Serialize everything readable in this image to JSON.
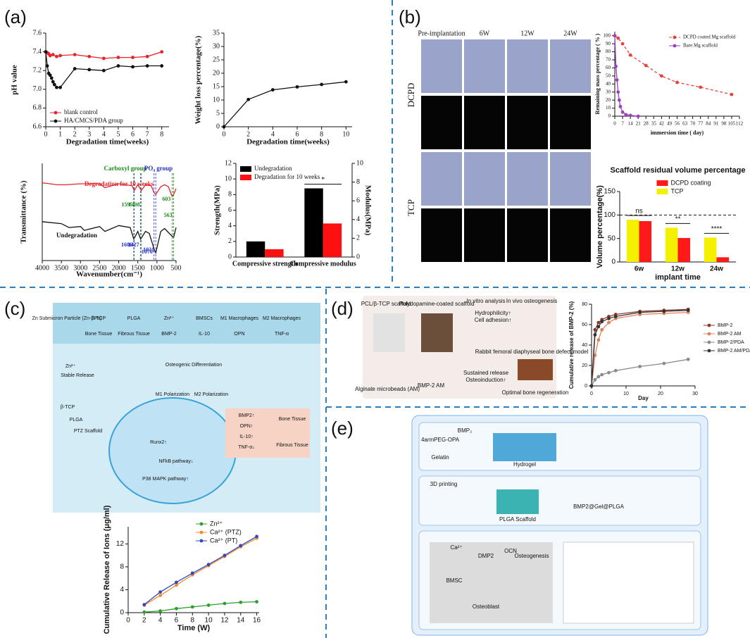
{
  "panel_labels": [
    "(a)",
    "(b)",
    "(c)",
    "(d)",
    "(e)"
  ],
  "photos": {
    "columns": [
      "Pre-implantation",
      "6W",
      "12W",
      "24W"
    ],
    "rows": [
      "DCPD",
      "TCP"
    ]
  },
  "diagrams": {
    "c": [
      "Zn Submicron Particle (Zn-SPs)",
      "β-TCP",
      "PLGA",
      "Zn²⁺",
      "BMSCs",
      "M1 Macrophages",
      "M2 Macrophages",
      "Bone Tissue",
      "Fibrous Tissue",
      "BMP-2",
      "IL-10",
      "OPN",
      "TNF-α",
      "Zn²⁺",
      "Stable Release",
      "Osteogenic Differentiation",
      "M1 Polarization",
      "M2 Polarization",
      "PTZ Scaffold",
      "PLGA",
      "β-TCP",
      "Runx2↑",
      "NFkB pathway↓",
      "P38 MAPK pathway↑",
      "BMP2↑",
      "OPN↑",
      "IL-10↑",
      "TNF-α↓",
      "Bone Tissue",
      "Fibrous Tissue"
    ],
    "d": [
      "PCL/β-TCP scaffold",
      "Polydopamine-coated scaffold",
      "In vitro analysis",
      "In vivo osteogenesis",
      "Hydrophilicity↑",
      "Cell adhesion↑",
      "Alginate microbeads (AM)",
      "BMP-2 AM",
      "Sustained release",
      "Osteoinduction↑",
      "Rabbit femoral diaphyseal bone defect model",
      "Optimal bone regeneration"
    ],
    "e": [
      "4armPEG-OPA",
      "BMP₂",
      "Gelatin",
      "Hydrogel",
      "3D printing",
      "PLGA Scaffold",
      "BMP2@Gel@PLGA",
      "Ca²⁺",
      "OCN",
      "Osteogenesis",
      "DMP2",
      "BMSC",
      "Osteoblast"
    ]
  },
  "chart_data": [
    {
      "type": "line",
      "xlabel": "Degradation time(weeks)",
      "ylabel": "pH value",
      "xlim": [
        0,
        8.5
      ],
      "xticks": [
        0,
        1,
        2,
        3,
        4,
        5,
        6,
        7,
        8
      ],
      "ylim": [
        6.6,
        7.6
      ],
      "yticks": [
        6.6,
        6.8,
        {
          "value": 7,
          "label": "7.0"
        },
        7.2,
        7.4,
        7.6
      ],
      "legend": "lower left",
      "series": [
        {
          "name": "blank control",
          "color": "#e8232a",
          "x": [
            0,
            0.1,
            0.2,
            0.3,
            0.5,
            0.75,
            1,
            2,
            3,
            4,
            5,
            6,
            7,
            8
          ],
          "values": [
            7.4,
            7.39,
            7.38,
            7.36,
            7.37,
            7.35,
            7.36,
            7.37,
            7.35,
            7.33,
            7.34,
            7.34,
            7.35,
            7.4
          ]
        },
        {
          "name": "HA/CMCS/PDA group",
          "color": "#111111",
          "x": [
            0,
            0.1,
            0.2,
            0.3,
            0.4,
            0.5,
            0.6,
            0.75,
            1,
            2,
            3,
            4,
            5,
            6,
            7,
            8
          ],
          "values": [
            7.4,
            7.25,
            7.17,
            7.15,
            7.12,
            7.08,
            7.05,
            7.02,
            7.02,
            7.22,
            7.21,
            7.2,
            7.25,
            7.24,
            7.25,
            7.25
          ]
        }
      ]
    },
    {
      "type": "line",
      "xlabel": "Degradation time(weeks)",
      "ylabel": "Weight loss percentage(%)",
      "xlim": [
        0,
        10.5
      ],
      "xticks": [
        0,
        2,
        4,
        6,
        8,
        10
      ],
      "ylim": [
        0,
        35
      ],
      "yticks": [
        0,
        5,
        10,
        15,
        20,
        25,
        30,
        35
      ],
      "series": [
        {
          "name": "Weight loss",
          "color": "#111111",
          "x": [
            0,
            2,
            4,
            6,
            8,
            10
          ],
          "values": [
            0,
            10.2,
            13.8,
            14.9,
            15.8,
            16.8
          ]
        }
      ]
    },
    {
      "type": "line",
      "xlabel": "Wavenumber(cm⁻¹)",
      "ylabel": "Transmittance (%)",
      "xlim": [
        4000,
        500
      ],
      "xticks": [
        4000,
        3500,
        3000,
        2500,
        2000,
        1500,
        1000,
        500
      ],
      "ylim": [
        0,
        100
      ],
      "markers": false,
      "legend": "on-curve",
      "annotations": [
        "Carboxyl group",
        "PO₄ group"
      ],
      "peaks": [
        1595,
        1408,
        603,
        563,
        1606,
        1427,
        1076,
        1031
      ],
      "series": [
        {
          "name": "Degradation for 10 weeks",
          "color": "#e8232a",
          "x": [
            4000,
            3600,
            3400,
            3000,
            2500,
            2360,
            2000,
            1650,
            1595,
            1500,
            1408,
            1300,
            1150,
            1076,
            1031,
            900,
            800,
            700,
            603,
            563,
            500
          ],
          "values": [
            80,
            78,
            78,
            79,
            79,
            75,
            79,
            77,
            72,
            78,
            72,
            78,
            77,
            70,
            68,
            76,
            78,
            76,
            66,
            68,
            74
          ]
        },
        {
          "name": "Undegradation",
          "color": "#111111",
          "x": [
            4000,
            3500,
            3300,
            3000,
            2900,
            2500,
            2360,
            2000,
            1700,
            1606,
            1500,
            1427,
            1300,
            1200,
            1076,
            1031,
            900,
            800,
            603,
            563,
            500
          ],
          "values": [
            40,
            38,
            34,
            35,
            31,
            35,
            30,
            36,
            34,
            22,
            30,
            22,
            30,
            28,
            12,
            8,
            30,
            33,
            25,
            24,
            34
          ]
        }
      ]
    },
    {
      "type": "bar",
      "ylabel": "Strength(MPa)",
      "y2label": "Modulus(MPa)",
      "categories": [
        "Compressive strength",
        "Compressive modulus"
      ],
      "ylim": [
        0,
        12
      ],
      "yticks": [
        0,
        2,
        4,
        6,
        8,
        10,
        12
      ],
      "y2lim": [
        0,
        10
      ],
      "y2ticks": [
        0,
        2,
        4,
        6,
        8,
        10
      ],
      "legend": "upper left",
      "significance": [
        null,
        "*"
      ],
      "series": [
        {
          "name": "Undegradation",
          "color": "#000000",
          "values": [
            2,
            8.8
          ]
        },
        {
          "name": "Degradation for 10 weeks",
          "color": "#ff1010",
          "values": [
            1,
            4.3
          ]
        }
      ]
    },
    {
      "type": "line",
      "xlabel": "immersion time ( day)",
      "ylabel": "Remaining mass percentage ( % )",
      "xlim": [
        0,
        112
      ],
      "xticks": [
        0,
        7,
        14,
        21,
        28,
        35,
        42,
        49,
        56,
        63,
        70,
        77,
        84,
        91,
        98,
        105,
        112
      ],
      "ylim": [
        0,
        105
      ],
      "yticks": [
        0,
        10,
        20,
        30,
        40,
        50,
        60,
        70,
        80,
        90,
        100
      ],
      "legend": "upper right",
      "series": [
        {
          "name": "DCPD coated Mg scaffold",
          "color": "#e8413c",
          "dash": true,
          "x": [
            0,
            3,
            7,
            14,
            28,
            42,
            56,
            77,
            105
          ],
          "values": [
            100,
            97,
            90,
            76,
            63,
            50,
            42,
            36,
            27
          ]
        },
        {
          "name": "Bare Mg scaffold",
          "color": "#9b3fbf",
          "x": [
            0,
            1,
            2,
            3,
            4,
            5,
            7,
            10,
            14,
            21
          ],
          "values": [
            100,
            62,
            45,
            30,
            20,
            12,
            5,
            2,
            1,
            0
          ]
        }
      ]
    },
    {
      "type": "bar",
      "title": "Scaffold residual volume percentage",
      "xlabel": "implant time",
      "ylabel": "Volume percentage(%)",
      "categories": [
        "6w",
        "12w",
        "24w"
      ],
      "ylim": [
        0,
        150
      ],
      "yticks": [
        0,
        50,
        100,
        150
      ],
      "reference_line": 100,
      "legend": "upper center",
      "significance": [
        "ns",
        "**",
        "****"
      ],
      "series": [
        {
          "name": "DCPD coating",
          "color": "#ff1a1a",
          "values": [
            87,
            51,
            10
          ]
        },
        {
          "name": "TCP",
          "color": "#f5f000",
          "values": [
            90,
            73,
            52
          ]
        }
      ]
    },
    {
      "type": "line",
      "xlabel": "Time (W)",
      "ylabel": "Cumulative Release of Ions (μg/ml)",
      "xlim": [
        0,
        16.3
      ],
      "xticks": [
        0,
        2,
        4,
        6,
        8,
        10,
        12,
        14,
        16
      ],
      "ylim": [
        0,
        15
      ],
      "yticks": [
        0,
        4,
        8,
        12
      ],
      "legend": "outside upper right",
      "series": [
        {
          "name": "Zn²⁺",
          "color": "#2ca02c",
          "x": [
            2,
            4,
            6,
            8,
            10,
            12,
            14,
            16
          ],
          "values": [
            0.1,
            0.3,
            0.7,
            1.0,
            1.3,
            1.6,
            1.8,
            1.9
          ]
        },
        {
          "name": "Ca²⁺ (PTZ)",
          "color": "#f28c28",
          "x": [
            2,
            4,
            6,
            8,
            10,
            12,
            14,
            16
          ],
          "values": [
            1.3,
            3.0,
            4.8,
            6.6,
            8.2,
            9.8,
            11.5,
            13.0
          ]
        },
        {
          "name": "Ca²⁺ (PT)",
          "color": "#3346c4",
          "x": [
            2,
            4,
            6,
            8,
            10,
            12,
            14,
            16
          ],
          "values": [
            1.4,
            3.6,
            5.3,
            6.9,
            8.4,
            10.0,
            11.7,
            13.3
          ]
        }
      ]
    },
    {
      "type": "line",
      "xlabel": "Day",
      "ylabel": "Cumulative release of BMP-2 (%)",
      "xlim": [
        0,
        30
      ],
      "xticks": [
        0,
        10,
        20,
        30
      ],
      "ylim": [
        0,
        80
      ],
      "yticks": [
        0,
        20,
        40,
        60,
        80
      ],
      "legend": "outside right",
      "series": [
        {
          "name": "BMP-2",
          "color": "#8b3a2a",
          "x": [
            0,
            1,
            2,
            3,
            5,
            7,
            14,
            21,
            28
          ],
          "values": [
            0,
            55,
            62,
            65,
            68,
            70,
            73,
            74,
            75
          ]
        },
        {
          "name": "BMP-2 AM",
          "color": "#e0805a",
          "x": [
            0,
            1,
            2,
            3,
            5,
            7,
            14,
            21,
            28
          ],
          "values": [
            0,
            30,
            45,
            55,
            62,
            66,
            70,
            71,
            72
          ]
        },
        {
          "name": "BMP-2/PDA",
          "color": "#8a8a8a",
          "x": [
            0,
            1,
            2,
            3,
            5,
            7,
            14,
            21,
            28
          ],
          "values": [
            0,
            6,
            9,
            11,
            13,
            15,
            19,
            22,
            26
          ]
        },
        {
          "name": "BMP-2 AM/PDA",
          "color": "#333333",
          "x": [
            0,
            1,
            2,
            3,
            5,
            7,
            14,
            21,
            28
          ],
          "values": [
            0,
            50,
            58,
            63,
            66,
            68,
            72,
            73,
            74
          ]
        }
      ]
    }
  ]
}
